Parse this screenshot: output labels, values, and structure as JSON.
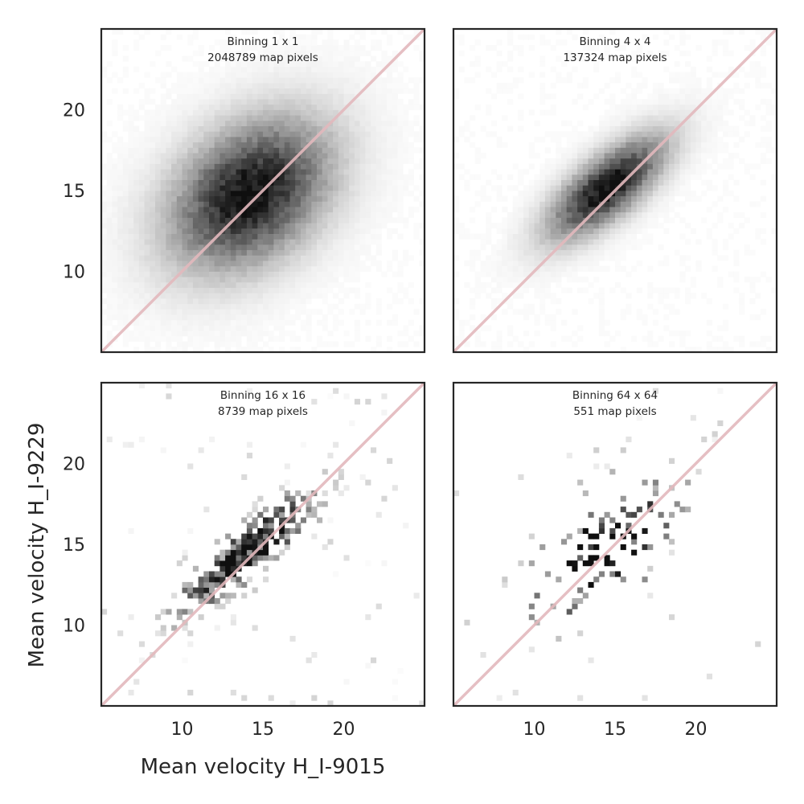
{
  "chart_data": [
    {
      "type": "heatmap",
      "title_lines": [
        "Binning 1 x 1",
        "2048789 map pixels"
      ],
      "bins": 1,
      "pixels": 2048789,
      "center": [
        14.2,
        14.8
      ],
      "sigma": [
        3.3,
        3.1
      ],
      "rho": 0.35,
      "density": 1.0
    },
    {
      "type": "heatmap",
      "title_lines": [
        "Binning 4 x 4",
        "137324 map pixels"
      ],
      "bins": 4,
      "pixels": 137324,
      "center": [
        14.5,
        15.2
      ],
      "sigma": [
        2.4,
        2.1
      ],
      "rho": 0.72,
      "density": 0.75
    },
    {
      "type": "heatmap",
      "title_lines": [
        "Binning 16 x 16",
        "8739 map pixels"
      ],
      "bins": 16,
      "pixels": 8739,
      "center": [
        14.0,
        14.5
      ],
      "sigma": [
        2.6,
        2.3
      ],
      "rho": 0.85,
      "density": 0.45
    },
    {
      "type": "heatmap",
      "title_lines": [
        "Binning 64 x 64",
        "551 map pixels"
      ],
      "bins": 64,
      "pixels": 551,
      "center": [
        14.2,
        14.8
      ],
      "sigma": [
        3.0,
        2.8
      ],
      "rho": 0.6,
      "density": 0.12
    }
  ],
  "shared": {
    "xlabel": "Mean velocity H_I-9015",
    "ylabel": "Mean velocity H_I-9229",
    "xlim": [
      5,
      25
    ],
    "ylim": [
      5,
      25
    ],
    "xticks": [
      10,
      15,
      20
    ],
    "yticks": [
      10,
      15,
      20
    ],
    "diagonal": "y = x",
    "diagonal_color": "#e3b9bd",
    "cmap": "Greys",
    "grid": false
  }
}
